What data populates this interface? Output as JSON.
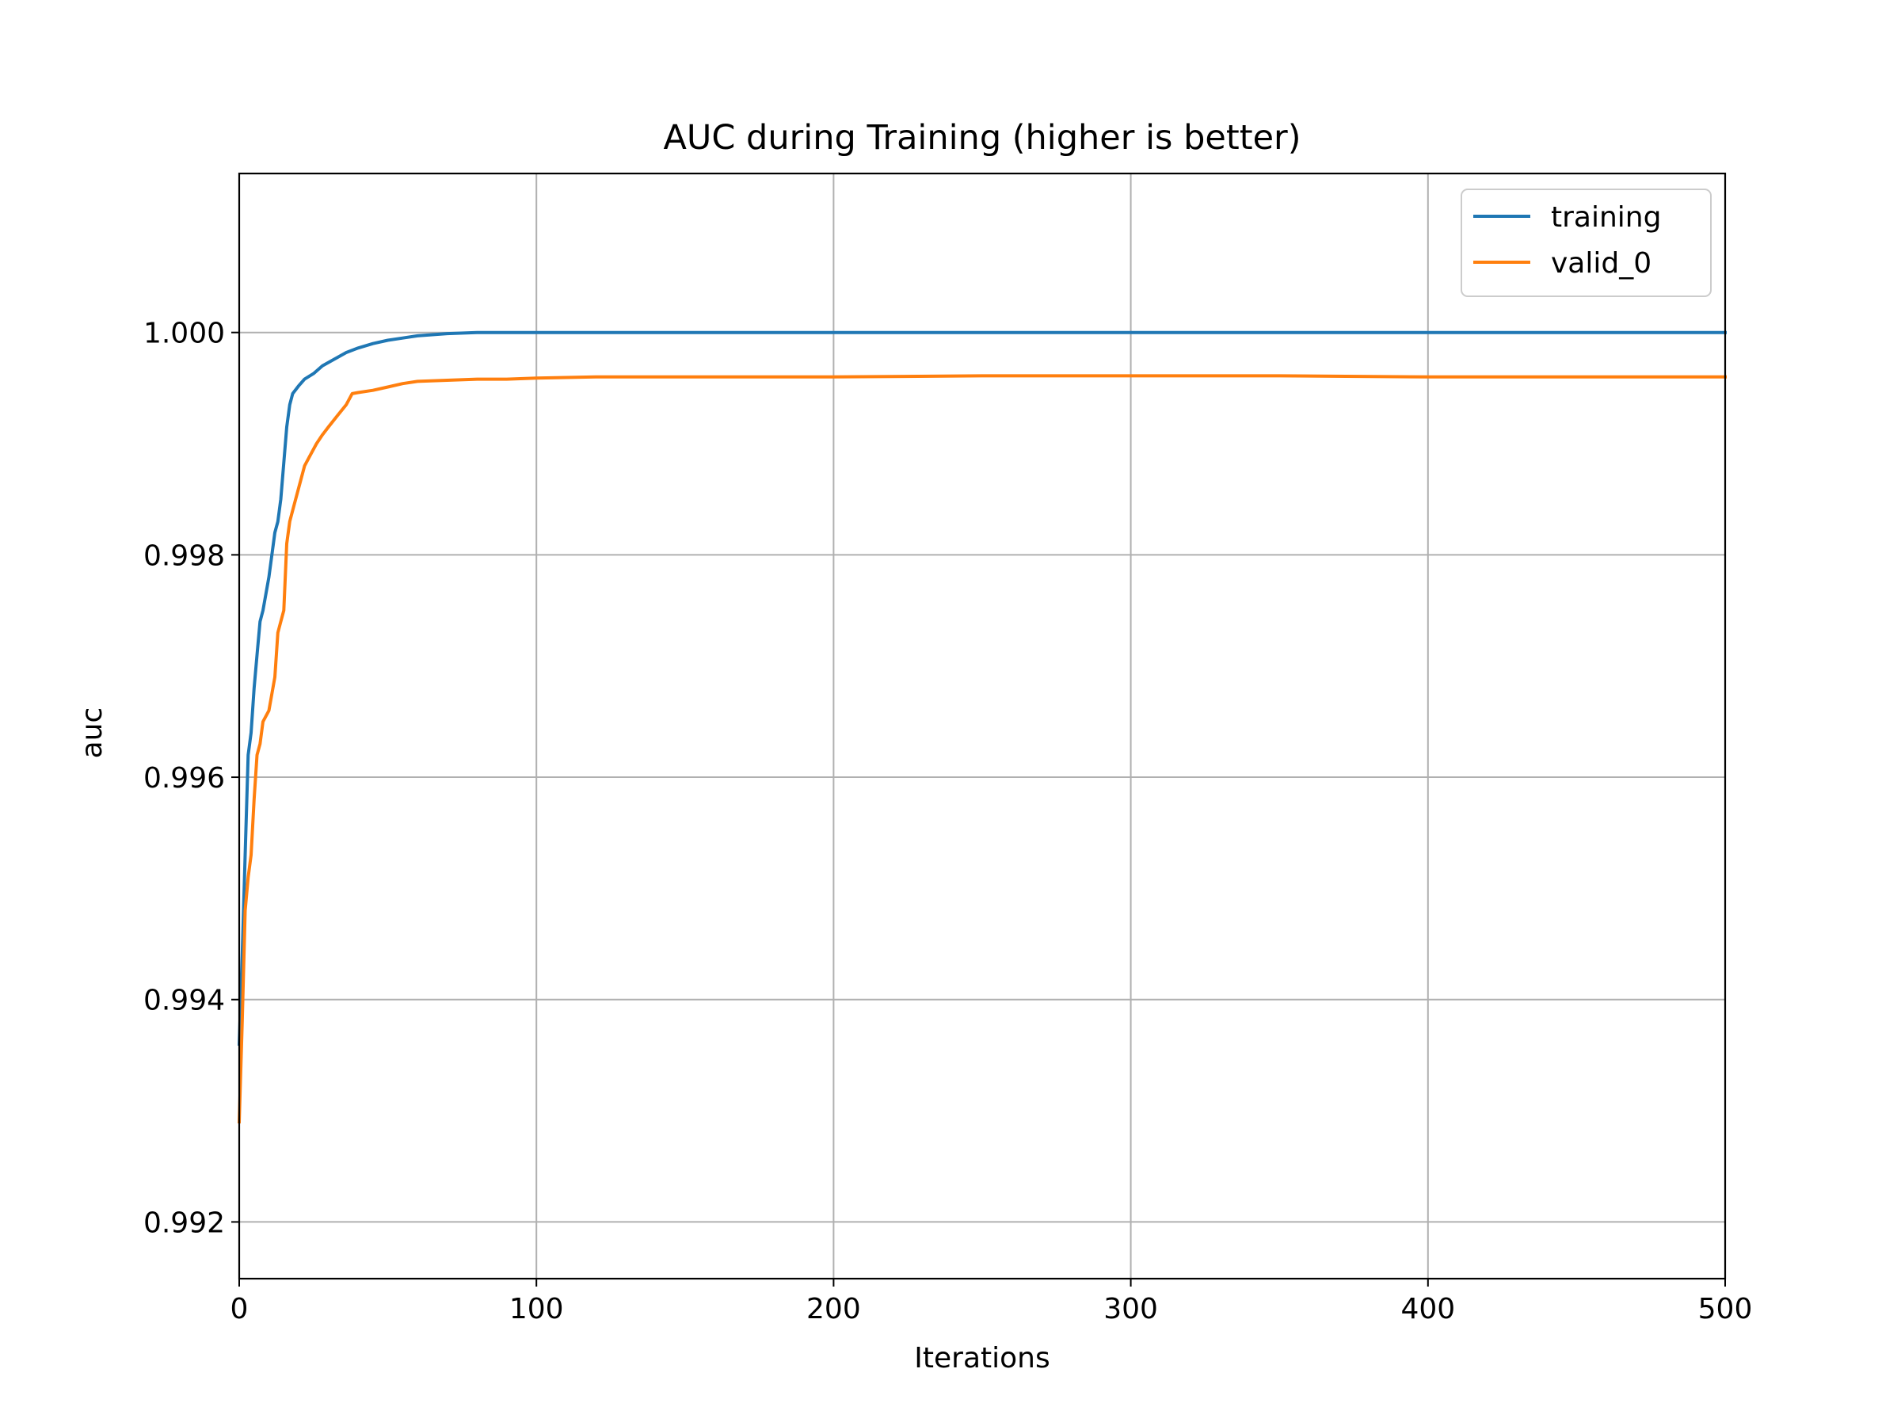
{
  "chart_data": {
    "type": "line",
    "title": "AUC during Training (higher is better)",
    "xlabel": "Iterations",
    "ylabel": "auc",
    "xlim": [
      0,
      500
    ],
    "ylim": [
      0.99149,
      1.00143
    ],
    "xticks": [
      0,
      100,
      200,
      300,
      400,
      500
    ],
    "xtick_labels": [
      "0",
      "100",
      "200",
      "300",
      "400",
      "500"
    ],
    "yticks": [
      0.992,
      0.994,
      0.996,
      0.998,
      1.0
    ],
    "ytick_labels": [
      "0.992",
      "0.994",
      "0.996",
      "0.998",
      "1.000"
    ],
    "grid": true,
    "legend_position": "top-right",
    "series": [
      {
        "name": "training",
        "color": "#1f77b4",
        "x": [
          0,
          1,
          2,
          3,
          4,
          5,
          6,
          7,
          8,
          10,
          12,
          13,
          14,
          16,
          17,
          18,
          20,
          22,
          25,
          28,
          32,
          36,
          40,
          45,
          50,
          55,
          60,
          70,
          80,
          100,
          150,
          200,
          300,
          400,
          500
        ],
        "y": [
          0.9936,
          0.9944,
          0.9953,
          0.9962,
          0.9964,
          0.9968,
          0.9971,
          0.9974,
          0.9975,
          0.9978,
          0.9982,
          0.9983,
          0.9985,
          0.99915,
          0.99935,
          0.99945,
          0.99952,
          0.99958,
          0.99963,
          0.9997,
          0.99976,
          0.99982,
          0.99986,
          0.9999,
          0.99993,
          0.99995,
          0.99997,
          0.99999,
          1.0,
          1.0,
          1.0,
          1.0,
          1.0,
          1.0,
          1.0
        ]
      },
      {
        "name": "valid_0",
        "color": "#ff7f0e",
        "x": [
          0,
          1,
          2,
          3,
          4,
          5,
          6,
          7,
          8,
          10,
          12,
          13,
          14,
          15,
          16,
          17,
          18,
          20,
          22,
          24,
          26,
          28,
          30,
          33,
          36,
          38,
          40,
          45,
          50,
          55,
          60,
          70,
          80,
          90,
          100,
          120,
          150,
          200,
          250,
          300,
          350,
          400,
          450,
          500
        ],
        "y": [
          0.9929,
          0.9938,
          0.9948,
          0.9951,
          0.9953,
          0.9958,
          0.9962,
          0.9963,
          0.9965,
          0.9966,
          0.9969,
          0.9973,
          0.9974,
          0.9975,
          0.9981,
          0.9983,
          0.9984,
          0.9986,
          0.9988,
          0.9989,
          0.999,
          0.99908,
          0.99915,
          0.99925,
          0.99935,
          0.99945,
          0.99946,
          0.99948,
          0.99951,
          0.99954,
          0.99956,
          0.99957,
          0.99958,
          0.99958,
          0.99959,
          0.9996,
          0.9996,
          0.9996,
          0.99961,
          0.99961,
          0.99961,
          0.9996,
          0.9996,
          0.9996
        ]
      }
    ]
  }
}
